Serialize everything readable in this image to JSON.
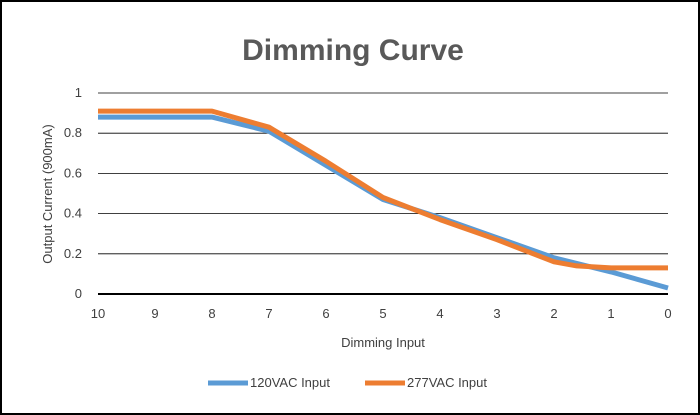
{
  "chart_data": {
    "type": "line",
    "title": "Dimming Curve",
    "xlabel": "Dimming Input",
    "ylabel": "Output Current (900mA)",
    "x_ticks": [
      "10",
      "9",
      "8",
      "7",
      "6",
      "5",
      "4",
      "3",
      "2",
      "1",
      "0"
    ],
    "y_ticks": [
      "0",
      "0.2",
      "0.4",
      "0.6",
      "0.8",
      "1"
    ],
    "xlim": [
      10,
      0
    ],
    "ylim": [
      0,
      1
    ],
    "grid": true,
    "legend_position": "bottom",
    "series": [
      {
        "name": "120VAC Input",
        "color": "#5B9BD5",
        "points": [
          [
            10,
            0.88
          ],
          [
            9,
            0.88
          ],
          [
            8,
            0.88
          ],
          [
            7,
            0.81
          ],
          [
            6,
            0.64
          ],
          [
            5,
            0.47
          ],
          [
            4,
            0.38
          ],
          [
            3,
            0.28
          ],
          [
            2,
            0.18
          ],
          [
            1,
            0.11
          ],
          [
            0,
            0.03
          ]
        ]
      },
      {
        "name": "277VAC Input",
        "color": "#ED7D31",
        "points": [
          [
            10,
            0.91
          ],
          [
            9,
            0.91
          ],
          [
            8,
            0.91
          ],
          [
            7,
            0.83
          ],
          [
            6,
            0.66
          ],
          [
            5,
            0.48
          ],
          [
            4,
            0.37
          ],
          [
            3,
            0.27
          ],
          [
            2,
            0.16
          ],
          [
            1.6,
            0.14
          ],
          [
            1,
            0.13
          ],
          [
            0,
            0.13
          ]
        ]
      }
    ]
  }
}
